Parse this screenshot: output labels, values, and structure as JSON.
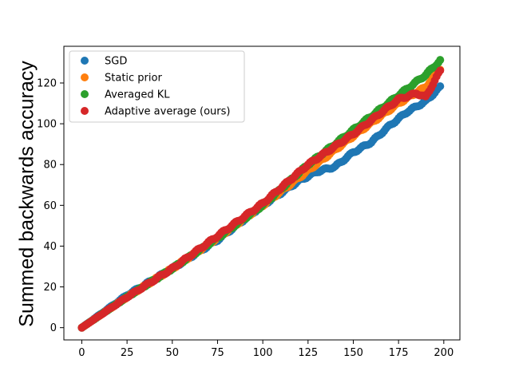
{
  "chart_data": {
    "type": "scatter",
    "title": "",
    "xlabel": "",
    "ylabel": "Summed backwards accuracy",
    "xlim": [
      -9.9,
      208.9
    ],
    "ylim": [
      -6.0,
      138.0
    ],
    "xticks": [
      0,
      25,
      50,
      75,
      100,
      125,
      150,
      175,
      200
    ],
    "yticks": [
      0,
      20,
      40,
      60,
      80,
      100,
      120
    ],
    "grid": false,
    "legend_position": "top-left",
    "series": [
      {
        "name": "SGD",
        "color": "#1f77b4",
        "x_range": [
          0,
          198
        ],
        "knots": [
          [
            0,
            0
          ],
          [
            25,
            16
          ],
          [
            50,
            29
          ],
          [
            75,
            43
          ],
          [
            100,
            60
          ],
          [
            120,
            72
          ],
          [
            130,
            76.5
          ],
          [
            140,
            79
          ],
          [
            150,
            86
          ],
          [
            160,
            91
          ],
          [
            170,
            99
          ],
          [
            180,
            106
          ],
          [
            190,
            111
          ],
          [
            198,
            118
          ]
        ]
      },
      {
        "name": "Static prior",
        "color": "#ff7f0e",
        "x_range": [
          0,
          198
        ],
        "knots": [
          [
            0,
            0
          ],
          [
            25,
            15
          ],
          [
            50,
            29
          ],
          [
            75,
            44
          ],
          [
            100,
            60
          ],
          [
            125,
            77
          ],
          [
            150,
            94
          ],
          [
            175,
            110
          ],
          [
            190,
            118
          ],
          [
            198,
            127
          ]
        ]
      },
      {
        "name": "Averaged KL",
        "color": "#2ca02c",
        "x_range": [
          0,
          198
        ],
        "knots": [
          [
            0,
            0
          ],
          [
            25,
            15
          ],
          [
            50,
            29
          ],
          [
            75,
            44
          ],
          [
            100,
            60
          ],
          [
            125,
            80
          ],
          [
            150,
            97
          ],
          [
            175,
            114
          ],
          [
            190,
            124
          ],
          [
            198,
            131
          ]
        ]
      },
      {
        "name": "Adaptive average (ours)",
        "color": "#d62728",
        "x_range": [
          0,
          198
        ],
        "knots": [
          [
            0,
            0
          ],
          [
            25,
            15
          ],
          [
            50,
            29
          ],
          [
            75,
            45
          ],
          [
            100,
            61
          ],
          [
            125,
            80
          ],
          [
            150,
            95
          ],
          [
            175,
            112
          ],
          [
            185,
            115
          ],
          [
            190,
            113
          ],
          [
            198,
            126
          ]
        ]
      }
    ]
  }
}
